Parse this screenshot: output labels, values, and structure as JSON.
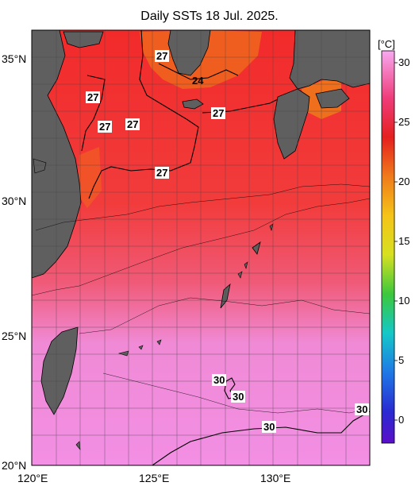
{
  "title": "Daily SSTs 18 Jul. 2025.",
  "latitude_labels": [
    "35°N",
    "30°N",
    "25°N",
    "20°N"
  ],
  "longitude_labels": [
    "120°E",
    "125°E",
    "130°E"
  ],
  "isotherm_labels": [
    "27",
    "27",
    "27",
    "27",
    "27",
    "24",
    "27",
    "27",
    "30",
    "30",
    "30",
    "30"
  ],
  "colorbar": {
    "unit": "[°C]",
    "ticks": [
      "30",
      "25",
      "20",
      "15",
      "10",
      "5",
      "0"
    ]
  },
  "colors": {
    "land": "#5f5f5f",
    "warm_sea": "#f53535",
    "hot_sea": "#f58ae6"
  }
}
